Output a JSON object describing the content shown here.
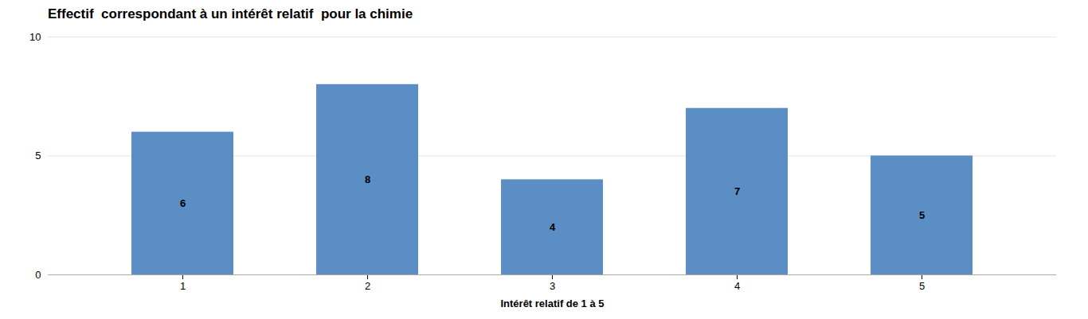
{
  "chart_data": {
    "type": "bar",
    "title": "Effectif  correspondant à un intérêt relatif  pour la chimie",
    "xlabel": "Intérêt relatif de 1 à 5",
    "categories": [
      "1",
      "2",
      "3",
      "4",
      "5"
    ],
    "values": [
      6,
      8,
      4,
      7,
      5
    ],
    "color": "#5B8EC5",
    "ylim": [
      0,
      10
    ],
    "yticks": [
      0,
      5,
      10
    ],
    "grid": true,
    "data_labels": true
  }
}
